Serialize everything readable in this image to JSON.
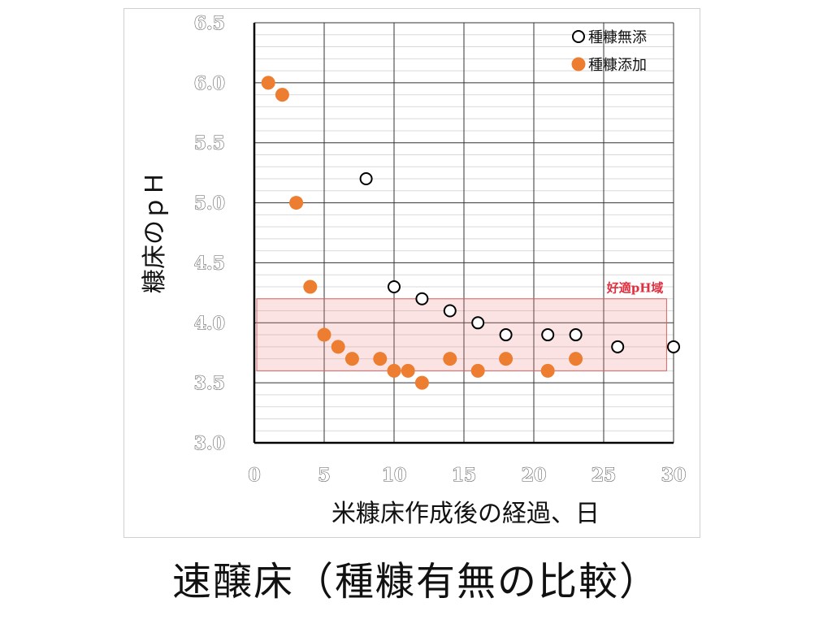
{
  "slide": {
    "title": "速醸床（種糠有無の比較）"
  },
  "chart_data": {
    "type": "scatter",
    "xlabel": "米糠床作成後の経過、日",
    "ylabel": "糠床のｐＨ",
    "xlim": [
      0,
      30
    ],
    "ylim": [
      3.0,
      6.5
    ],
    "x_ticks": [
      "0",
      "5",
      "10",
      "15",
      "20",
      "25",
      "30"
    ],
    "y_ticks": [
      "3.0",
      "3.5",
      "4.0",
      "4.5",
      "5.0",
      "5.5",
      "6.0",
      "6.5"
    ],
    "grid": true,
    "legend_position": "top-right",
    "series": [
      {
        "name": "種糠無添",
        "marker": "open-circle",
        "color": "#000000",
        "points": [
          [
            8,
            5.2
          ],
          [
            10,
            4.3
          ],
          [
            12,
            4.2
          ],
          [
            14,
            4.1
          ],
          [
            16,
            4.0
          ],
          [
            18,
            3.9
          ],
          [
            21,
            3.9
          ],
          [
            23,
            3.9
          ],
          [
            26,
            3.8
          ],
          [
            30,
            3.8
          ]
        ]
      },
      {
        "name": "種糠添加",
        "marker": "filled-circle",
        "color": "#ed7d31",
        "points": [
          [
            1,
            6.0
          ],
          [
            2,
            5.9
          ],
          [
            3,
            5.0
          ],
          [
            4,
            4.3
          ],
          [
            5,
            3.9
          ],
          [
            6,
            3.8
          ],
          [
            7,
            3.7
          ],
          [
            9,
            3.7
          ],
          [
            10,
            3.6
          ],
          [
            11,
            3.6
          ],
          [
            12,
            3.5
          ],
          [
            14,
            3.7
          ],
          [
            16,
            3.6
          ],
          [
            18,
            3.7
          ],
          [
            21,
            3.6
          ],
          [
            23,
            3.7
          ]
        ]
      }
    ],
    "annotations": [
      {
        "type": "band",
        "label": "好適pH域",
        "y_range": [
          3.6,
          4.2
        ],
        "x_range": [
          0,
          29.5
        ],
        "color": "#f08080"
      }
    ]
  }
}
